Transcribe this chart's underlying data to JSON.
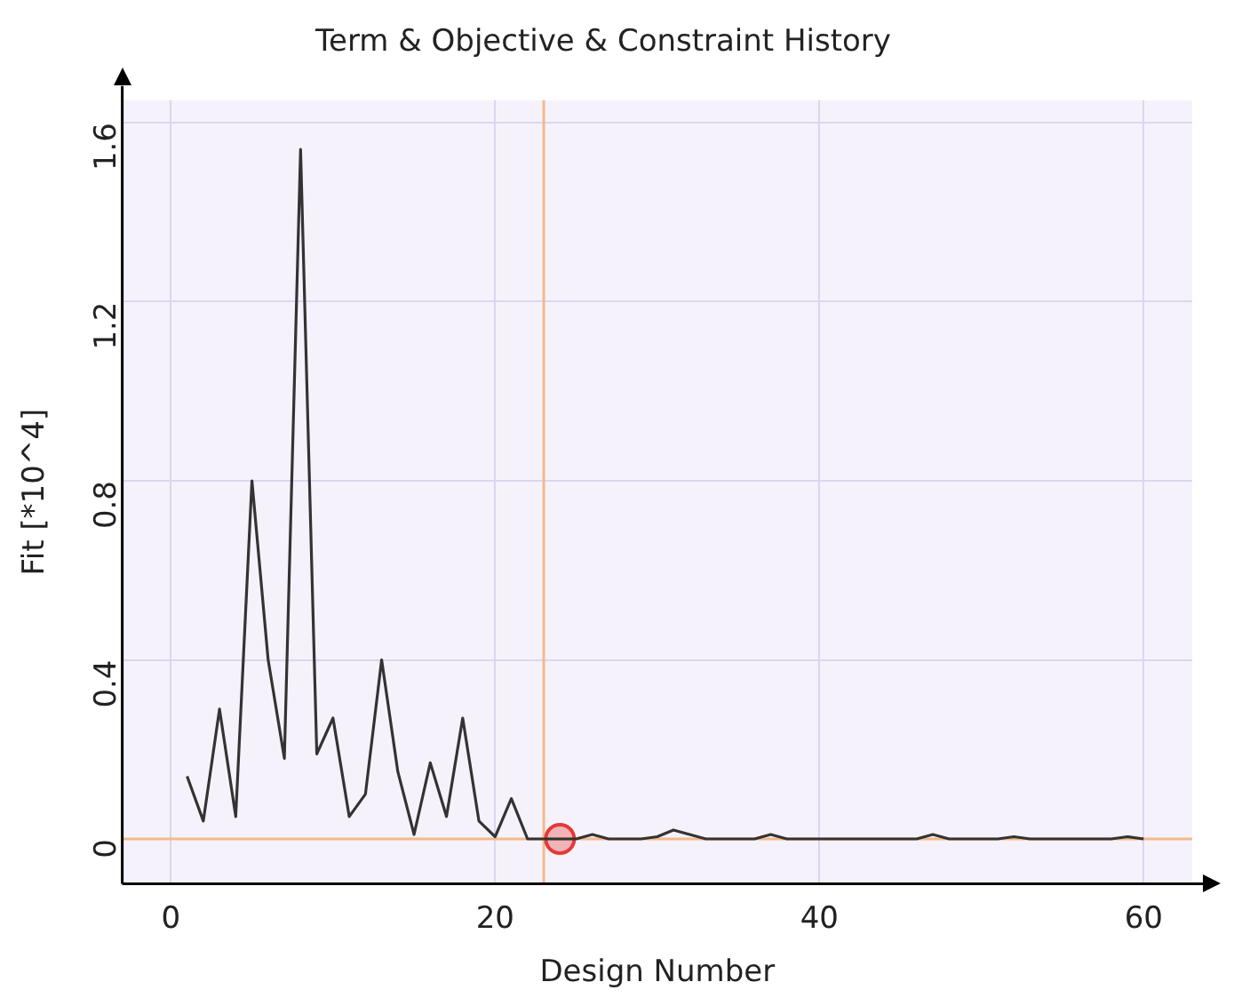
{
  "chart_data": {
    "type": "line",
    "title": "Term & Objective & Constraint History",
    "xlabel": "Design Number",
    "ylabel": "Fit [*10^4]",
    "xlim": [
      -3,
      63
    ],
    "xticks": [
      0,
      20,
      40,
      60
    ],
    "ylim": [
      -0.1,
      1.65
    ],
    "yticks": [
      0,
      0.4,
      0.8,
      1.2,
      1.6
    ],
    "grid": true,
    "legend": false,
    "series": [
      {
        "color": "#333333",
        "marker": "none",
        "x": [
          1,
          2,
          3,
          4,
          5,
          6,
          7,
          8,
          9,
          10,
          11,
          12,
          13,
          14,
          15,
          16,
          17,
          18,
          19,
          20,
          21,
          22,
          23,
          24,
          25,
          26,
          27,
          28,
          29,
          30,
          31,
          32,
          33,
          34,
          35,
          36,
          37,
          38,
          39,
          40,
          41,
          42,
          43,
          44,
          45,
          46,
          47,
          48,
          49,
          50,
          51,
          52,
          53,
          54,
          55,
          56,
          57,
          58,
          59,
          60
        ],
        "values": [
          0.14,
          0.04,
          0.29,
          0.05,
          0.8,
          0.4,
          0.18,
          1.54,
          0.19,
          0.27,
          0.05,
          0.1,
          0.4,
          0.15,
          0.01,
          0.17,
          0.05,
          0.27,
          0.04,
          0.005,
          0.09,
          0,
          0,
          0,
          0,
          0.01,
          0,
          0,
          0,
          0.005,
          0.02,
          0.01,
          0,
          0,
          0,
          0,
          0.01,
          0,
          0,
          0,
          0,
          0,
          0,
          0,
          0,
          0,
          0.01,
          0,
          0,
          0,
          0,
          0.005,
          0,
          0,
          0,
          0,
          0,
          0,
          0.005,
          0
        ]
      },
      {
        "type": "scatter",
        "color": "#e53935",
        "marker": "circle",
        "x": [
          24
        ],
        "values": [
          0
        ]
      }
    ],
    "ref_lines": [
      {
        "axis": "x",
        "value": 23,
        "color": "#f4b98a"
      },
      {
        "axis": "y",
        "value": 0,
        "color": "#f4b98a"
      }
    ]
  }
}
